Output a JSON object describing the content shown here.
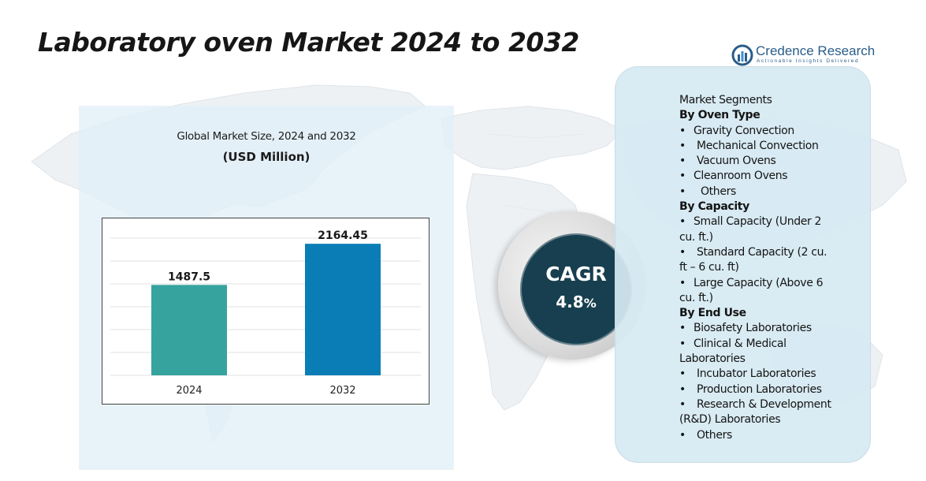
{
  "header": {
    "title": "Laboratory oven Market 2024 to 2032"
  },
  "logo": {
    "name": "Credence Research",
    "tagline": "Actionable Insights Delivered"
  },
  "chart_panel": {
    "subtitle": "Global Market Size, 2024 and 2032",
    "unit": "(USD Million)"
  },
  "chart_data": {
    "type": "bar",
    "categories": [
      "2024",
      "2032"
    ],
    "values": [
      1487.5,
      2164.45
    ],
    "value_labels": [
      "1487.5",
      "2164.45"
    ],
    "title": "Global Market Size, 2024 and 2032",
    "ylabel": "(USD Million)",
    "xlabel": "",
    "ylim": [
      0,
      2400
    ],
    "bar_colors": [
      "#36a39f",
      "#0a7db6"
    ],
    "grid": true
  },
  "cagr": {
    "label": "CAGR",
    "value": "4.8",
    "unit": "%"
  },
  "segments": {
    "heading": "Market Segments",
    "lines": [
      {
        "kind": "head",
        "text": "By Oven Type"
      },
      {
        "kind": "item",
        "bullet": "•",
        "text": "Gravity Convection"
      },
      {
        "kind": "item2",
        "bullet": "•",
        "text": "Mechanical Convection"
      },
      {
        "kind": "item2",
        "bullet": "•",
        "text": "Vacuum Ovens"
      },
      {
        "kind": "item",
        "bullet": "•",
        "text": "Cleanroom Ovens"
      },
      {
        "kind": "item3",
        "bullet": "•",
        "text": "Others"
      },
      {
        "kind": "head",
        "text": "By Capacity"
      },
      {
        "kind": "item",
        "bullet": "•",
        "text": "Small Capacity (Under 2"
      },
      {
        "kind": "cont",
        "text": "cu. ft.)"
      },
      {
        "kind": "item2",
        "bullet": "•",
        "text": "Standard Capacity (2 cu."
      },
      {
        "kind": "cont",
        "text": "ft – 6 cu. ft)"
      },
      {
        "kind": "item",
        "bullet": "•",
        "text": "Large Capacity (Above 6"
      },
      {
        "kind": "cont",
        "text": "cu. ft.)"
      },
      {
        "kind": "head",
        "text": "By End Use"
      },
      {
        "kind": "item",
        "bullet": "•",
        "text": "Biosafety Laboratories"
      },
      {
        "kind": "item",
        "bullet": "•",
        "text": "Clinical & Medical"
      },
      {
        "kind": "cont",
        "text": "Laboratories"
      },
      {
        "kind": "item2",
        "bullet": "•",
        "text": "Incubator Laboratories"
      },
      {
        "kind": "item2",
        "bullet": "•",
        "text": "Production Laboratories"
      },
      {
        "kind": "item2",
        "bullet": "•",
        "text": "Research & Development"
      },
      {
        "kind": "cont",
        "text": "(R&D) Laboratories"
      },
      {
        "kind": "item2",
        "bullet": "•",
        "text": "Others"
      }
    ]
  }
}
